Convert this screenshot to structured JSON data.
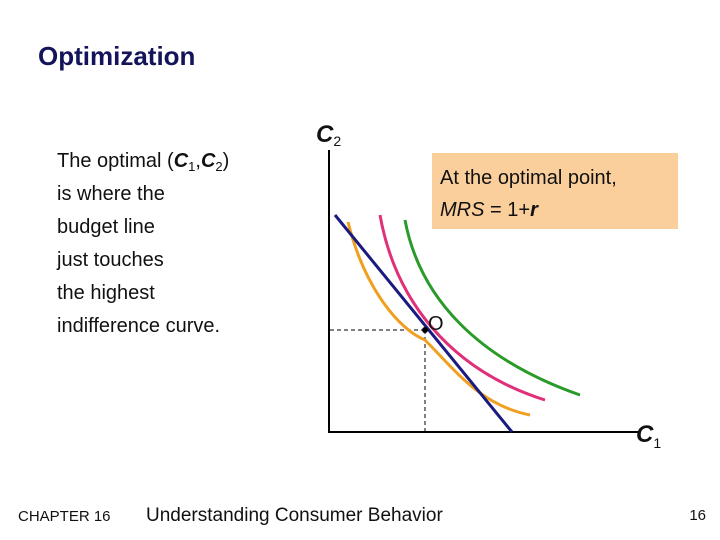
{
  "title": "Optimization",
  "body": {
    "line1": [
      "The optimal (",
      "C",
      "1",
      ",",
      "C",
      "2",
      ")"
    ],
    "lines": [
      "is where the",
      "budget line",
      "just touches",
      "the highest",
      "indifference curve."
    ]
  },
  "diagram": {
    "y_axis_label": [
      "C",
      "2"
    ],
    "x_axis_label": [
      "C",
      "1"
    ],
    "callout": {
      "line1": "At the optimal point,",
      "line2": [
        "MRS",
        " = 1+",
        "r"
      ]
    },
    "point_label": "O"
  },
  "footer": {
    "chapter": "CHAPTER 16",
    "subject": "Understanding Consumer Behavior",
    "page": "16"
  }
}
